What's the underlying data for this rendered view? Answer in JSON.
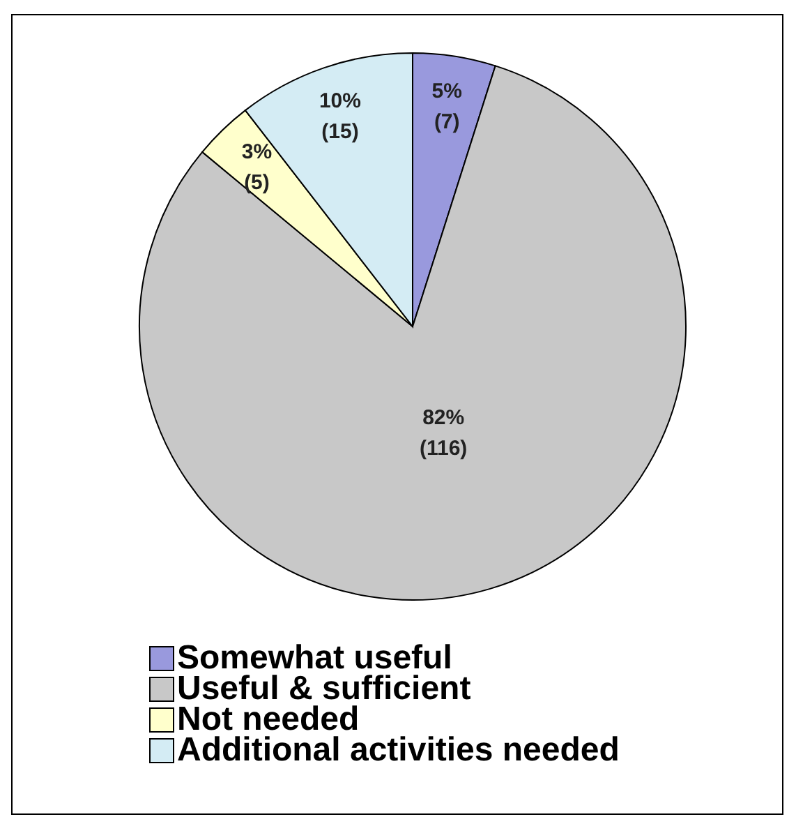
{
  "chart_data": {
    "type": "pie",
    "categories": [
      "Somewhat useful",
      "Useful & sufficient",
      "Not needed",
      "Additional activities needed"
    ],
    "values": [
      7,
      116,
      5,
      15
    ],
    "value_labels": [
      "5% (7)",
      "82% (116)",
      "3% (5)",
      "10% (15)"
    ],
    "colors": [
      "#9999dd",
      "#c8c8c8",
      "#ffffcc",
      "#d4ecf4"
    ],
    "legend": "bottom"
  }
}
